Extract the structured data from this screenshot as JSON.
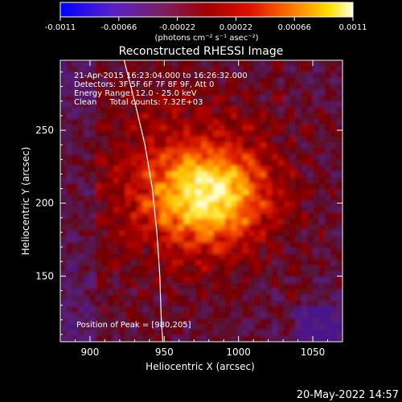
{
  "chart_data": {
    "type": "heatmap",
    "title": "Reconstructed RHESSI Image",
    "xlabel": "Heliocentric X (arcsec)",
    "ylabel": "Heliocentric Y (arcsec)",
    "xlim": [
      880,
      1070
    ],
    "ylim": [
      105,
      298
    ],
    "x_ticks": [
      900,
      950,
      1000,
      1050
    ],
    "y_ticks": [
      150,
      200,
      250
    ],
    "x_tick_labels": [
      "900",
      "950",
      "1000",
      "1050"
    ],
    "y_tick_labels": [
      "150",
      "200",
      "250"
    ],
    "colorbar": {
      "min": -0.0011,
      "max": 0.0011,
      "ticks": [
        -0.0011,
        -0.00066,
        -0.00022,
        0.00022,
        0.00066,
        0.0011
      ],
      "tick_labels": [
        "-0.0011",
        "-0.00066",
        "-0.00022",
        "0.00022",
        "0.00066",
        "0.0011"
      ],
      "unit_label": "(photons cm⁻² s⁻¹ asec⁻²)"
    },
    "annotations": [
      "21-Apr-2015 16:23:04.000 to 16:26:32.000",
      "Detectors: 3F 5F 6F 7F 8F 9F, Att 0",
      "Energy Range: 12.0 - 25.0 keV",
      "Clean     Total counts: 7.32E+03"
    ],
    "peak_label": "Position of Peak = [980,205]",
    "peak": [
      980,
      205
    ],
    "limb_curve": [
      [
        923,
        298
      ],
      [
        930,
        270
      ],
      [
        937,
        240
      ],
      [
        942,
        210
      ],
      [
        945,
        180
      ],
      [
        947,
        150
      ],
      [
        948,
        120
      ],
      [
        949,
        105
      ]
    ]
  },
  "footer": {
    "date": "20-May-2022 14:57"
  },
  "colors": {
    "background": "#000000",
    "foreground": "#ffffff",
    "colormap": [
      "#0000ff",
      "#6a1a9a",
      "#5a1a3a",
      "#8a0000",
      "#c80000",
      "#ff4000",
      "#ff9a00",
      "#ffdd00",
      "#ffffe0"
    ]
  }
}
